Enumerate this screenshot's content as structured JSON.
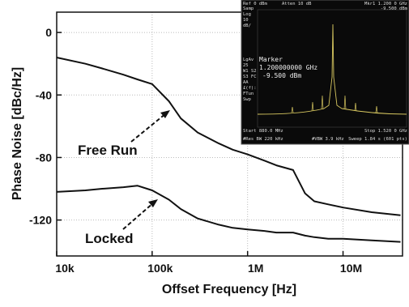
{
  "chart_data": {
    "type": "line",
    "x_label": "Offset Frequency [Hz]",
    "y_label": "Phase Noise [dBc/Hz]",
    "x_scale": "log",
    "grid": true,
    "x": [
      10000,
      20000,
      30000,
      50000,
      70000,
      100000,
      150000,
      200000,
      300000,
      500000,
      700000,
      1000000,
      1500000,
      2000000,
      3000000,
      4000000,
      5000000,
      7000000,
      10000000,
      20000000,
      40000000
    ],
    "series": [
      {
        "name": "Free Run",
        "color": "#111111",
        "values": [
          -16,
          -20,
          -23,
          -27,
          -30,
          -33,
          -44,
          -55,
          -64,
          -71,
          -75,
          -78,
          -82,
          -85,
          -88,
          -103,
          -108,
          -110,
          -112,
          -115,
          -117
        ]
      },
      {
        "name": "Locked",
        "color": "#111111",
        "values": [
          -102,
          -101,
          -100,
          -99,
          -98,
          -101,
          -107,
          -113,
          -119,
          -123,
          -125,
          -126,
          -127,
          -128,
          -128,
          -130,
          -131,
          -132,
          -132,
          -133,
          -134
        ]
      }
    ],
    "xlim": [
      10000,
      42000000
    ],
    "xticks": [
      {
        "value": 10000,
        "label": "10k"
      },
      {
        "value": 100000,
        "label": "100k"
      },
      {
        "value": 1000000,
        "label": "1M"
      },
      {
        "value": 10000000,
        "label": "10M"
      }
    ],
    "ylim": [
      -143,
      13
    ],
    "yticks": [
      0,
      -40,
      -80,
      -120
    ]
  },
  "inset": {
    "top_left": "Ref 0 dBm",
    "atten": "Atten 10 dB",
    "mkr": "Mkr1 1.200 0 GHz",
    "mkr_level": "-9.500 dBm",
    "side": [
      "Samp",
      "Log",
      "10",
      "dB/",
      "",
      "",
      "",
      "",
      "",
      "LgAv",
      "25",
      "W1 S2",
      "S3 FC",
      "AA",
      "£(f):",
      "FTun",
      "Swp"
    ],
    "marker_title": "Marker",
    "marker_freq": "1.200000000 GHz",
    "marker_level": "-9.500 dBm",
    "start": "Start 880.0 MHz",
    "stop": "Stop 1.520 0 GHz",
    "rbw": "#Res BW 220 kHz",
    "vbw": "#VBW 3.9 kHz",
    "sweep": "Sweep 1.84 s (601 pts)"
  }
}
